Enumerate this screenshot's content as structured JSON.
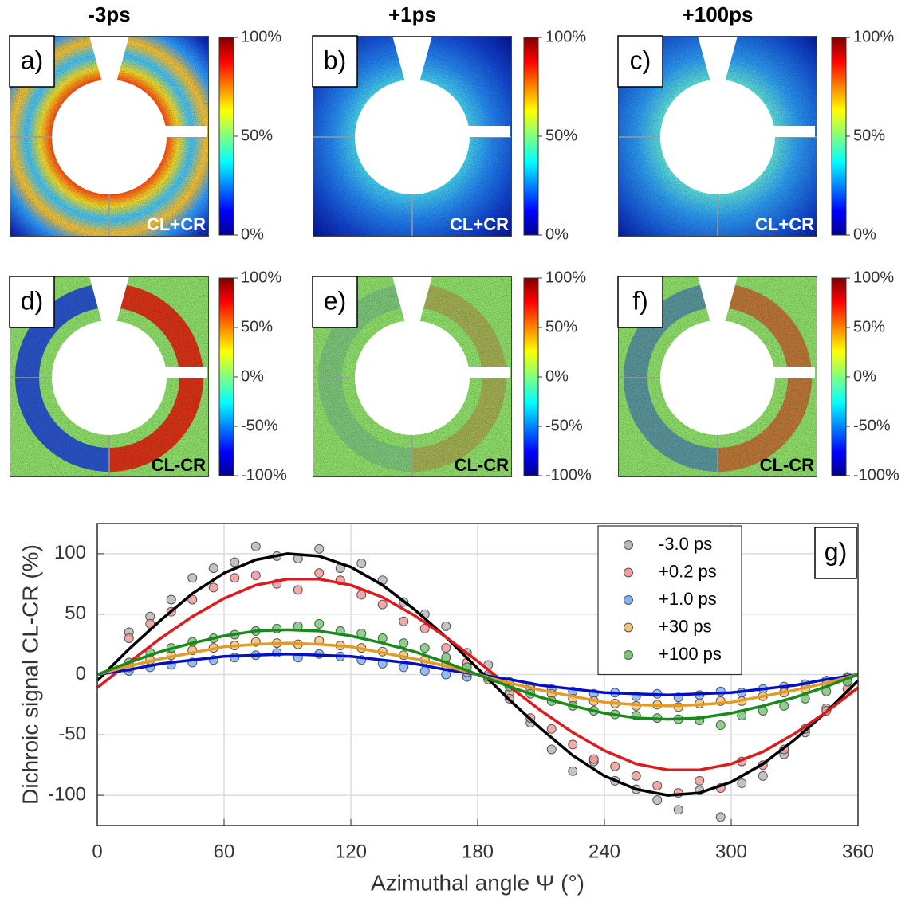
{
  "panels": {
    "columns": [
      "-3ps",
      "+1ps",
      "+100ps"
    ],
    "labels": [
      "a)",
      "b)",
      "c)",
      "d)",
      "e)",
      "f)"
    ],
    "sum_label": "CL+CR",
    "diff_label": "CL-CR",
    "sum_colorbar": {
      "lim": [
        0,
        100
      ],
      "ticks": [
        {
          "value": 0,
          "label": "0%"
        },
        {
          "value": 50,
          "label": "50%"
        },
        {
          "value": 100,
          "label": "100%"
        }
      ]
    },
    "diff_colorbar": {
      "lim": [
        -100,
        100
      ],
      "ticks": [
        {
          "value": -100,
          "label": "-100%"
        },
        {
          "value": -50,
          "label": "-50%"
        },
        {
          "value": 0,
          "label": "0%"
        },
        {
          "value": 50,
          "label": "50%"
        },
        {
          "value": 100,
          "label": "100%"
        }
      ]
    }
  },
  "chart_data": {
    "type": "scatter",
    "annotation": "g)",
    "xlabel": "Azimuthal angle Ψ (°)",
    "ylabel": "Dichroic signal CL-CR (%)",
    "xlim": [
      0,
      360
    ],
    "ylim": [
      -125,
      125
    ],
    "xticks": [
      0,
      60,
      120,
      180,
      240,
      300,
      360
    ],
    "yticks": [
      -100,
      -50,
      0,
      50,
      100
    ],
    "grid": true,
    "legend": "upper right",
    "x": [
      15,
      25,
      35,
      45,
      55,
      65,
      75,
      85,
      95,
      105,
      115,
      125,
      135,
      145,
      155,
      165,
      175,
      185,
      195,
      205,
      215,
      225,
      235,
      245,
      255,
      265,
      275,
      285,
      295,
      305,
      315,
      325,
      335,
      345,
      355
    ],
    "series": [
      {
        "name": "-3.0 ps",
        "color": "#b8b8b8",
        "values": [
          35,
          48,
          62,
          80,
          88,
          93,
          106,
          98,
          96,
          104,
          88,
          92,
          78,
          60,
          50,
          40,
          18,
          8,
          -15,
          -40,
          -62,
          -80,
          -72,
          -88,
          -95,
          -104,
          -112,
          -96,
          -118,
          -90,
          -84,
          -66,
          -48,
          -28,
          -5
        ]
      },
      {
        "name": "+0.2 ps",
        "color": "#f29a9a",
        "values": [
          30,
          42,
          52,
          62,
          72,
          80,
          82,
          75,
          70,
          84,
          78,
          66,
          58,
          44,
          38,
          22,
          10,
          0,
          -20,
          -36,
          -45,
          -58,
          -70,
          -76,
          -84,
          -92,
          -98,
          -88,
          -94,
          -72,
          -75,
          -62,
          -45,
          -30,
          -12
        ]
      },
      {
        "name": "+1.0 ps",
        "color": "#7fb2ff",
        "values": [
          3,
          6,
          8,
          10,
          12,
          14,
          16,
          18,
          14,
          17,
          15,
          12,
          9,
          6,
          3,
          0,
          -2,
          -4,
          -6,
          -10,
          -12,
          -14,
          -16,
          -15,
          -18,
          -16,
          -19,
          -17,
          -14,
          -15,
          -12,
          -10,
          -8,
          -5,
          -2
        ]
      },
      {
        "name": "+30 ps",
        "color": "#f3c272",
        "values": [
          6,
          12,
          16,
          20,
          22,
          24,
          27,
          26,
          25,
          28,
          24,
          22,
          19,
          16,
          12,
          8,
          2,
          -4,
          -8,
          -12,
          -16,
          -20,
          -22,
          -24,
          -26,
          -25,
          -27,
          -24,
          -22,
          -22,
          -18,
          -15,
          -12,
          -8,
          -3
        ]
      },
      {
        "name": "+100 ps",
        "color": "#78c878",
        "values": [
          10,
          18,
          22,
          27,
          30,
          33,
          36,
          38,
          40,
          42,
          36,
          34,
          30,
          26,
          22,
          14,
          6,
          -2,
          -10,
          -16,
          -22,
          -26,
          -30,
          -33,
          -34,
          -36,
          -37,
          -38,
          -42,
          -34,
          -30,
          -26,
          -20,
          -14,
          -6
        ]
      }
    ],
    "fit_x": [
      0,
      15,
      30,
      45,
      60,
      75,
      90,
      105,
      120,
      135,
      150,
      165,
      180,
      195,
      210,
      225,
      240,
      255,
      270,
      285,
      300,
      315,
      330,
      345,
      360
    ],
    "fits": [
      {
        "color": "#000000",
        "values": [
          -5,
          21,
          45,
          67,
          84,
          95,
          100,
          98,
          89,
          74,
          54,
          31,
          5,
          -21,
          -45,
          -67,
          -84,
          -95,
          -100,
          -98,
          -89,
          -74,
          -54,
          -31,
          -5
        ]
      },
      {
        "color": "#e0191c",
        "values": [
          -11,
          10,
          30,
          48,
          63,
          74,
          79,
          79,
          74,
          64,
          49,
          31,
          11,
          -10,
          -30,
          -48,
          -63,
          -74,
          -79,
          -79,
          -74,
          -64,
          -49,
          -31,
          -11
        ]
      },
      {
        "color": "#0010c8",
        "values": [
          0,
          4,
          9,
          12,
          15,
          16,
          17,
          16,
          15,
          12,
          9,
          4,
          0,
          -4,
          -9,
          -12,
          -15,
          -16,
          -17,
          -16,
          -15,
          -12,
          -9,
          -4,
          0
        ]
      },
      {
        "color": "#e39a26",
        "values": [
          0,
          7,
          13,
          18,
          23,
          25,
          26,
          25,
          23,
          18,
          13,
          7,
          0,
          -7,
          -13,
          -18,
          -23,
          -25,
          -26,
          -25,
          -23,
          -18,
          -13,
          -7,
          0
        ]
      },
      {
        "color": "#178a1a",
        "values": [
          0,
          10,
          19,
          26,
          32,
          36,
          37,
          36,
          32,
          26,
          19,
          10,
          0,
          -10,
          -19,
          -26,
          -32,
          -36,
          -37,
          -36,
          -32,
          -26,
          -19,
          -10,
          0
        ]
      }
    ]
  }
}
